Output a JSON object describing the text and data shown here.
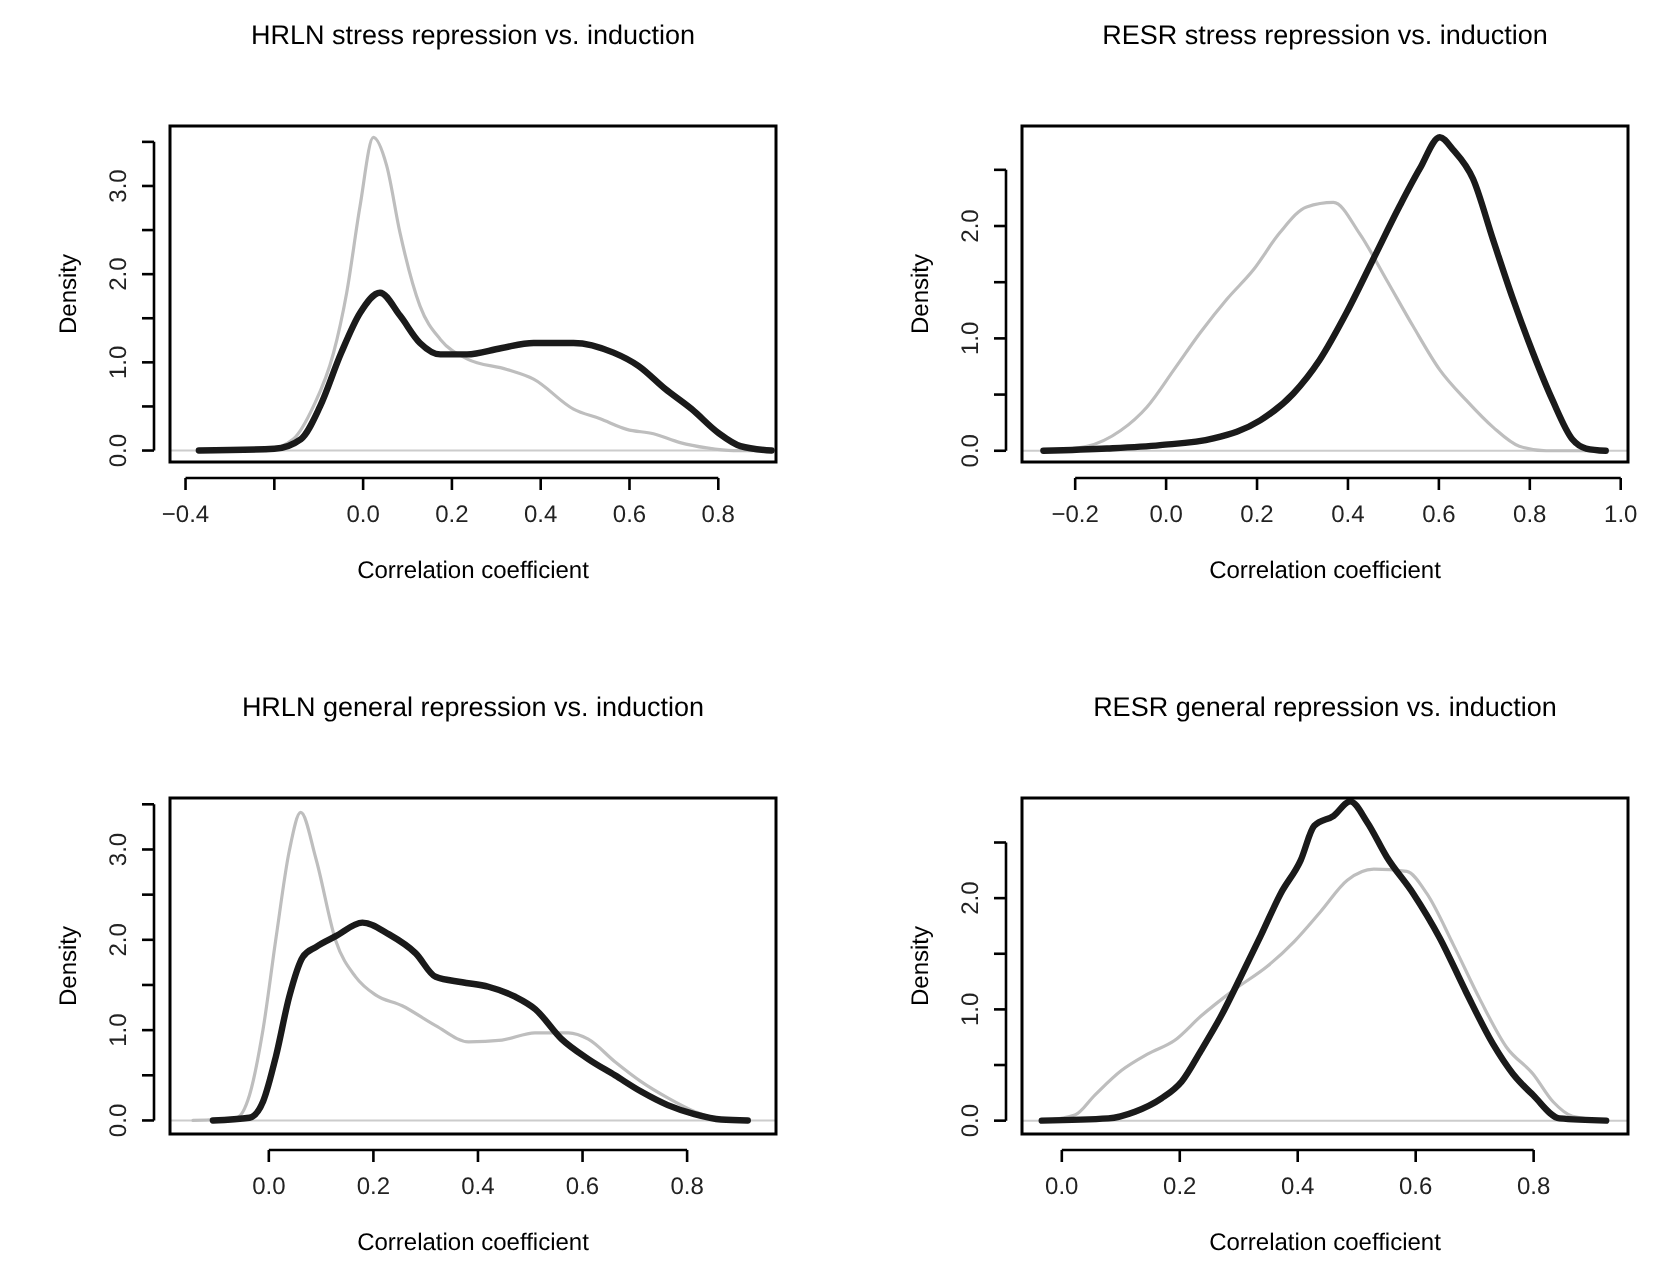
{
  "chart_data": [
    {
      "type": "line",
      "title": "HRLN stress repression vs. induction",
      "xlabel": "Correlation coefficient",
      "ylabel": "Density",
      "xlim": [
        -0.435,
        0.93
      ],
      "ylim": [
        -0.13,
        3.68
      ],
      "xticks": [
        {
          "value": -0.4,
          "label": "−0.4"
        },
        {
          "value": -0.2,
          "label": null
        },
        {
          "value": 0,
          "label": "0.0"
        },
        0.2,
        0.4,
        0.6,
        0.8
      ],
      "yticks": [
        {
          "value": 0,
          "label": "0.0"
        },
        {
          "value": 0.5,
          "label": null
        },
        {
          "value": 1,
          "label": "1.0"
        },
        {
          "value": 1.5,
          "label": null
        },
        {
          "value": 2,
          "label": "2.0"
        },
        {
          "value": 2.5,
          "label": null
        },
        {
          "value": 3,
          "label": "3.0"
        },
        {
          "value": 3.5,
          "label": null
        }
      ],
      "ref_lines": [
        {
          "axis": "y",
          "value": 0,
          "color": "#cccccc"
        }
      ],
      "series": [
        {
          "color": "#bebebe",
          "x": [
            -0.217,
            -0.157,
            -0.112,
            -0.067,
            -0.037,
            -0.007,
            0.023,
            0.053,
            0.083,
            0.128,
            0.174,
            0.234,
            0.324,
            0.384,
            0.474,
            0.534,
            0.594,
            0.654,
            0.714,
            0.774,
            0.834,
            0.91
          ],
          "values": [
            0,
            0.13,
            0.5,
            1.1,
            1.79,
            2.77,
            3.55,
            3.23,
            2.47,
            1.64,
            1.26,
            1.04,
            0.92,
            0.81,
            0.47,
            0.36,
            0.24,
            0.19,
            0.09,
            0.03,
            0,
            0
          ]
        },
        {
          "color": "#1a1a1a",
          "x": [
            -0.37,
            -0.2,
            -0.14,
            -0.097,
            -0.05,
            -0.007,
            0.038,
            0.083,
            0.128,
            0.174,
            0.234,
            0.31,
            0.384,
            0.474,
            0.564,
            0.62,
            0.68,
            0.74,
            0.8,
            0.85,
            0.92
          ],
          "values": [
            0,
            0.02,
            0.13,
            0.5,
            1.1,
            1.56,
            1.79,
            1.53,
            1.22,
            1.09,
            1.09,
            1.16,
            1.22,
            1.22,
            1.11,
            0.96,
            0.7,
            0.47,
            0.2,
            0.05,
            0
          ]
        }
      ]
    },
    {
      "type": "line",
      "title": "RESR stress repression vs. induction",
      "xlabel": "Correlation coefficient",
      "ylabel": "Density",
      "xlim": [
        -0.317,
        1.016
      ],
      "ylim": [
        -0.1,
        2.89
      ],
      "xticks": [
        {
          "value": -0.2,
          "label": "−0.2"
        },
        {
          "value": 0,
          "label": "0.0"
        },
        0.2,
        0.4,
        0.6,
        0.8,
        {
          "value": 1,
          "label": "1.0"
        }
      ],
      "yticks": [
        {
          "value": 0,
          "label": "0.0"
        },
        {
          "value": 0.5,
          "label": null
        },
        {
          "value": 1,
          "label": "1.0"
        },
        {
          "value": 1.5,
          "label": null
        },
        {
          "value": 2,
          "label": "2.0"
        },
        {
          "value": 2.5,
          "label": null
        }
      ],
      "ref_lines": [
        {
          "axis": "y",
          "value": 0,
          "color": "#cccccc"
        }
      ],
      "series": [
        {
          "color": "#bebebe",
          "x": [
            -0.27,
            -0.174,
            -0.1,
            -0.042,
            0.017,
            0.075,
            0.134,
            0.192,
            0.25,
            0.309,
            0.368,
            0.426,
            0.485,
            0.543,
            0.602,
            0.66,
            0.719,
            0.777,
            0.836,
            0.967
          ],
          "values": [
            0,
            0.04,
            0.18,
            0.39,
            0.72,
            1.05,
            1.35,
            1.61,
            1.94,
            2.17,
            2.21,
            1.93,
            1.52,
            1.11,
            0.72,
            0.45,
            0.21,
            0.04,
            0,
            0
          ]
        },
        {
          "color": "#1a1a1a",
          "x": [
            -0.27,
            -0.13,
            -0.013,
            0.104,
            0.207,
            0.28,
            0.338,
            0.397,
            0.455,
            0.514,
            0.558,
            0.602,
            0.631,
            0.675,
            0.719,
            0.763,
            0.807,
            0.85,
            0.894,
            0.924,
            0.967
          ],
          "values": [
            0,
            0.02,
            0.05,
            0.11,
            0.27,
            0.51,
            0.81,
            1.23,
            1.7,
            2.18,
            2.51,
            2.79,
            2.68,
            2.42,
            1.88,
            1.35,
            0.87,
            0.45,
            0.1,
            0.02,
            0
          ]
        }
      ]
    },
    {
      "type": "line",
      "title": "HRLN general repression vs. induction",
      "xlabel": "Correlation coefficient",
      "ylabel": "Density",
      "xlim": [
        -0.189,
        0.97
      ],
      "ylim": [
        -0.15,
        3.57
      ],
      "xticks": [
        {
          "value": 0,
          "label": "0.0"
        },
        0.2,
        0.4,
        0.6,
        0.8
      ],
      "yticks": [
        {
          "value": 0,
          "label": "0.0"
        },
        {
          "value": 0.5,
          "label": null
        },
        {
          "value": 1,
          "label": "1.0"
        },
        {
          "value": 1.5,
          "label": null
        },
        {
          "value": 2,
          "label": "2.0"
        },
        {
          "value": 2.5,
          "label": null
        },
        {
          "value": 3,
          "label": "3.0"
        },
        {
          "value": 3.5,
          "label": null
        }
      ],
      "ref_lines": [
        {
          "axis": "y",
          "value": 0,
          "color": "#cccccc"
        }
      ],
      "series": [
        {
          "color": "#bebebe",
          "x": [
            -0.145,
            -0.062,
            -0.037,
            -0.011,
            0.014,
            0.039,
            0.061,
            0.09,
            0.128,
            0.166,
            0.204,
            0.255,
            0.319,
            0.382,
            0.446,
            0.509,
            0.573,
            0.611,
            0.662,
            0.712,
            0.763,
            0.814,
            0.865,
            0.916
          ],
          "values": [
            0,
            0.03,
            0.28,
            1.01,
            2.03,
            2.98,
            3.41,
            2.9,
            1.99,
            1.59,
            1.39,
            1.27,
            1.05,
            0.87,
            0.89,
            0.97,
            0.97,
            0.9,
            0.65,
            0.43,
            0.25,
            0.1,
            0.01,
            0
          ]
        },
        {
          "color": "#1a1a1a",
          "x": [
            -0.107,
            -0.037,
            -0.011,
            0.014,
            0.039,
            0.065,
            0.09,
            0.128,
            0.179,
            0.23,
            0.281,
            0.319,
            0.37,
            0.42,
            0.471,
            0.51,
            0.56,
            0.611,
            0.662,
            0.712,
            0.763,
            0.814,
            0.865,
            0.916
          ],
          "values": [
            0,
            0.03,
            0.21,
            0.72,
            1.37,
            1.81,
            1.92,
            2.04,
            2.19,
            2.06,
            1.85,
            1.59,
            1.53,
            1.48,
            1.37,
            1.23,
            0.9,
            0.68,
            0.5,
            0.32,
            0.17,
            0.07,
            0.01,
            0
          ]
        }
      ]
    },
    {
      "type": "line",
      "title": "RESR general repression vs. induction",
      "xlabel": "Correlation coefficient",
      "ylabel": "Density",
      "xlim": [
        -0.0675,
        0.96
      ],
      "ylim": [
        -0.12,
        2.9
      ],
      "xticks": [
        {
          "value": 0,
          "label": "0.0"
        },
        0.2,
        0.4,
        0.6,
        0.8
      ],
      "yticks": [
        {
          "value": 0,
          "label": "0.0"
        },
        {
          "value": 0.5,
          "label": null
        },
        {
          "value": 1,
          "label": "1.0"
        },
        {
          "value": 1.5,
          "label": null
        },
        {
          "value": 2,
          "label": "2.0"
        },
        {
          "value": 2.5,
          "label": null
        }
      ],
      "ref_lines": [
        {
          "axis": "y",
          "value": 0,
          "color": "#cccccc"
        }
      ],
      "series": [
        {
          "color": "#bebebe",
          "x": [
            -0.034,
            0.022,
            0.056,
            0.101,
            0.146,
            0.191,
            0.236,
            0.293,
            0.349,
            0.394,
            0.439,
            0.484,
            0.529,
            0.585,
            0.619,
            0.664,
            0.709,
            0.754,
            0.799,
            0.833,
            0.866,
            0.923
          ],
          "values": [
            0,
            0.05,
            0.23,
            0.45,
            0.6,
            0.72,
            0.94,
            1.18,
            1.39,
            1.61,
            1.88,
            2.16,
            2.26,
            2.24,
            2.04,
            1.58,
            1.09,
            0.66,
            0.42,
            0.17,
            0.04,
            0
          ]
        },
        {
          "color": "#1a1a1a",
          "x": [
            -0.034,
            0.079,
            0.124,
            0.169,
            0.203,
            0.236,
            0.27,
            0.304,
            0.338,
            0.371,
            0.405,
            0.428,
            0.461,
            0.489,
            0.518,
            0.551,
            0.596,
            0.641,
            0.686,
            0.731,
            0.765,
            0.799,
            0.844,
            0.923
          ],
          "values": [
            0,
            0.02,
            0.08,
            0.2,
            0.35,
            0.63,
            0.94,
            1.3,
            1.67,
            2.04,
            2.34,
            2.65,
            2.74,
            2.87,
            2.68,
            2.37,
            2.04,
            1.64,
            1.15,
            0.69,
            0.42,
            0.23,
            0.02,
            0
          ]
        }
      ]
    }
  ]
}
